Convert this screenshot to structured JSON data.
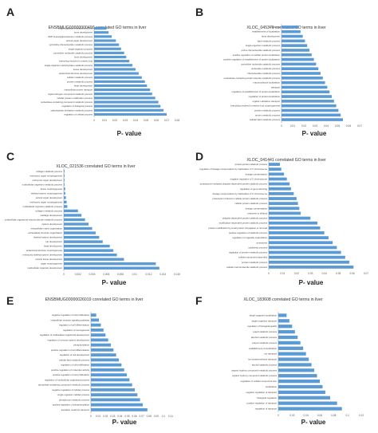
{
  "bar_color": "#5b9bd5",
  "chart_data": [
    {
      "panel": "A",
      "type": "bar",
      "orientation": "horizontal",
      "title": "ENSBMUG00000000490 correlated GO terms in liver",
      "xlabel": "P- value",
      "xlim": [
        0,
        0.08
      ],
      "xticks": [
        "0",
        "0.01",
        "0.02",
        "0.03",
        "0.04",
        "0.05",
        "0.06",
        "0.07",
        "0.08"
      ],
      "categories": [
        "single-organism metabolic process",
        "bone development",
        "UDP-N-acetylglucosamine metabolic process",
        "animal organ development",
        "pyrimidine ribonucleotide metabolic process",
        "single-organism process",
        "pyrimidine nucleotide catabolic process",
        "bone development",
        "branching involved in ureteric bud",
        "single-organism carbohydrate metabolic process",
        "tissue development",
        "anatomical structure development",
        "cellular metabolic process",
        "protein metabolic process",
        "heart development",
        "intracellular protein transport",
        "organonitrogen compound metabolic process",
        "cellular protein modification process",
        "nucleobase-containing compound metabolic process",
        "regulation of biological process",
        "carbohydrate derivative metabolic process",
        "regulation of cellular process"
      ],
      "values": [
        0.012,
        0.014,
        0.017,
        0.021,
        0.024,
        0.026,
        0.029,
        0.031,
        0.034,
        0.037,
        0.04,
        0.043,
        0.046,
        0.049,
        0.051,
        0.054,
        0.056,
        0.059,
        0.062,
        0.064,
        0.067,
        0.07
      ]
    },
    {
      "panel": "B",
      "type": "bar",
      "orientation": "horizontal",
      "title": "XLOC_045379 correlated GO terms in liver",
      "xlabel": "P- value",
      "xlim": [
        0,
        0.07
      ],
      "xticks": [
        "0",
        "0.01",
        "0.02",
        "0.03",
        "0.04",
        "0.05",
        "0.06",
        "0.07"
      ],
      "categories": [
        "localization",
        "establishment of localization",
        "bone development",
        "lipid metabolic process",
        "single-organism metabolic process",
        "purine ribonucleotide catabolic process",
        "positive regulation of cellular protein localization",
        "positive regulation of establishment of protein localization",
        "pyrimidine nucleotide catabolic process",
        "nucleotide metabolic process",
        "ribonucleotide metabolic process",
        "nucleobase-containing small molecule metabolic process",
        "macromolecule localization",
        "transport",
        "regulation of establishment of protein localization",
        "regulation of protein localization",
        "organic substance transport",
        "branching involved in ureteric bud morphogenesis",
        "protein metabolic process",
        "amine metabolic process",
        "cellular lipid metabolic process"
      ],
      "values": [
        0.015,
        0.017,
        0.019,
        0.021,
        0.023,
        0.025,
        0.027,
        0.029,
        0.031,
        0.033,
        0.035,
        0.037,
        0.039,
        0.041,
        0.043,
        0.045,
        0.047,
        0.049,
        0.051,
        0.053,
        0.055
      ]
    },
    {
      "panel": "C",
      "type": "bar",
      "orientation": "horizontal",
      "title": "XLOC_021536 correlated GO terms in liver",
      "xlabel": "P- value",
      "xlim": [
        0,
        0.016
      ],
      "xticks": [
        "0",
        "0.002",
        "0.004",
        "0.006",
        "0.008",
        "0.01",
        "0.012",
        "0.014",
        "0.016"
      ],
      "categories": [
        "collagen catabolic process",
        "embryonic organ morphogenesis",
        "embryonic organ development",
        "multicellular organism metabolic process",
        "tissue morphogenesis",
        "skeletal system morphogenesis",
        "animal organ development",
        "embryonic organ morphogenesis",
        "multicellular organism catabolic process",
        "collagen metabolic process",
        "cartilage development",
        "multicellular organismal macromolecule metabolic process",
        "system development",
        "extracellular matrix organization",
        "extracellular structure organization",
        "skeletal system development",
        "ear development",
        "head development",
        "anatomical structure morphogenesis",
        "embryonic skeletal system development",
        "muscle tissue development",
        "organ morphogenesis",
        "multicellular organism development"
      ],
      "values": [
        0.0001,
        0.0001,
        0.0001,
        0.0001,
        0.0002,
        0.0002,
        0.0003,
        0.0004,
        0.0005,
        0.002,
        0.0025,
        0.003,
        0.0035,
        0.004,
        0.0045,
        0.005,
        0.0055,
        0.0065,
        0.007,
        0.0075,
        0.0085,
        0.013,
        0.0135
      ]
    },
    {
      "panel": "D",
      "type": "bar",
      "orientation": "horizontal",
      "title": "XLOC_041441 correlated GO terms in liver",
      "xlabel": "P- value",
      "xlim": [
        0,
        0.07
      ],
      "xticks": [
        "0",
        "0.01",
        "0.02",
        "0.03",
        "0.04",
        "0.05",
        "0.06",
        "0.07"
      ],
      "categories": [
        "protein-protein catabolic process",
        "regulation of dosage compensation by inactivation of X chromosome",
        "dosage compensation",
        "negative regulation of X chromosome",
        "proteasome-mediated ubiquitin-dependent protein catabolic process",
        "regulation of gene silencing",
        "dosage compensation by inactivation of X chromosome",
        "proteolysis involved in cellular protein catabolic process",
        "cellular protein catabolic process",
        "dosage compensation",
        "response to ethanol",
        "ubiquitin-dependent protein catabolic process",
        "modification-dependent protein catabolic process",
        "protein modification by small protein conjugation or removal",
        "positive regulation of catabolic process",
        "regulation of organelle organization",
        "proteolysis",
        "cytokinetic process",
        "regulation of protein metabolic process",
        "cellular component assembly",
        "protein metabolic process",
        "cellular macromolecule catabolic process"
      ],
      "values": [
        0.008,
        0.009,
        0.011,
        0.013,
        0.015,
        0.016,
        0.018,
        0.02,
        0.021,
        0.022,
        0.023,
        0.03,
        0.035,
        0.037,
        0.04,
        0.043,
        0.046,
        0.049,
        0.052,
        0.055,
        0.058,
        0.061
      ]
    },
    {
      "panel": "E",
      "type": "bar",
      "orientation": "horizontal",
      "title": "ENSBMUG00000026019 correlated GO terms in liver",
      "xlabel": "P- value",
      "xlim": [
        0,
        0.12
      ],
      "xticks": [
        "0",
        "0.01",
        "0.02",
        "0.03",
        "0.04",
        "0.05",
        "0.06",
        "0.07",
        "0.08",
        "0.09",
        "0.1",
        "0.11"
      ],
      "categories": [
        "negative regulation of cell proliferation",
        "intracellular receptor signaling pathway",
        "regulation of cell differentiation",
        "regulation of neurogenesis",
        "regulation of multicellular organismal development",
        "regulation of nervous system development",
        "phosphorylation",
        "positive regulation of cell differentiation",
        "regulation of cell development",
        "cellular lipid metabolic process",
        "regulation of cell proliferation",
        "positive regulation of molecular activity",
        "positive regulation of cell proliferation",
        "regulation of multicellular organismal process",
        "phosphate-containing compound metabolic process",
        "negative regulation of cellular process",
        "single organism cellular process",
        "phosphorus metabolic process",
        "positive regulation of phosphorylation",
        "transition metal ion transport"
      ],
      "values": [
        0.008,
        0.012,
        0.015,
        0.019,
        0.022,
        0.026,
        0.03,
        0.034,
        0.038,
        0.042,
        0.046,
        0.05,
        0.054,
        0.058,
        0.062,
        0.066,
        0.07,
        0.074,
        0.078,
        0.085
      ]
    },
    {
      "panel": "F",
      "type": "bar",
      "orientation": "horizontal",
      "title": "XLOC_183608 correlated GO terms in liver",
      "xlabel": "P- value",
      "xlim": [
        0,
        0.12
      ],
      "xticks": [
        "0",
        "0.02",
        "0.04",
        "0.06",
        "0.08",
        "0.1",
        "0.12"
      ],
      "categories": [
        "single-organism localization",
        "single-organism transport",
        "regulation of biological quality",
        "polyol catabolic process",
        "alcohol metabolic process",
        "polyol metabolic process",
        "establishment of localization",
        "ion transport",
        "ion transmembrane transport",
        "alcohol catabolic process",
        "organic hydroxy compound metabolic process",
        "organic hydroxy compound catabolic process",
        "regulation of cellular component size",
        "localization",
        "negative regulation of transport",
        "biological regulation",
        "positive regulation of transport",
        "regulation of transport"
      ],
      "values": [
        0.012,
        0.016,
        0.02,
        0.024,
        0.028,
        0.032,
        0.036,
        0.04,
        0.044,
        0.048,
        0.052,
        0.056,
        0.06,
        0.064,
        0.068,
        0.075,
        0.085,
        0.092
      ]
    }
  ]
}
